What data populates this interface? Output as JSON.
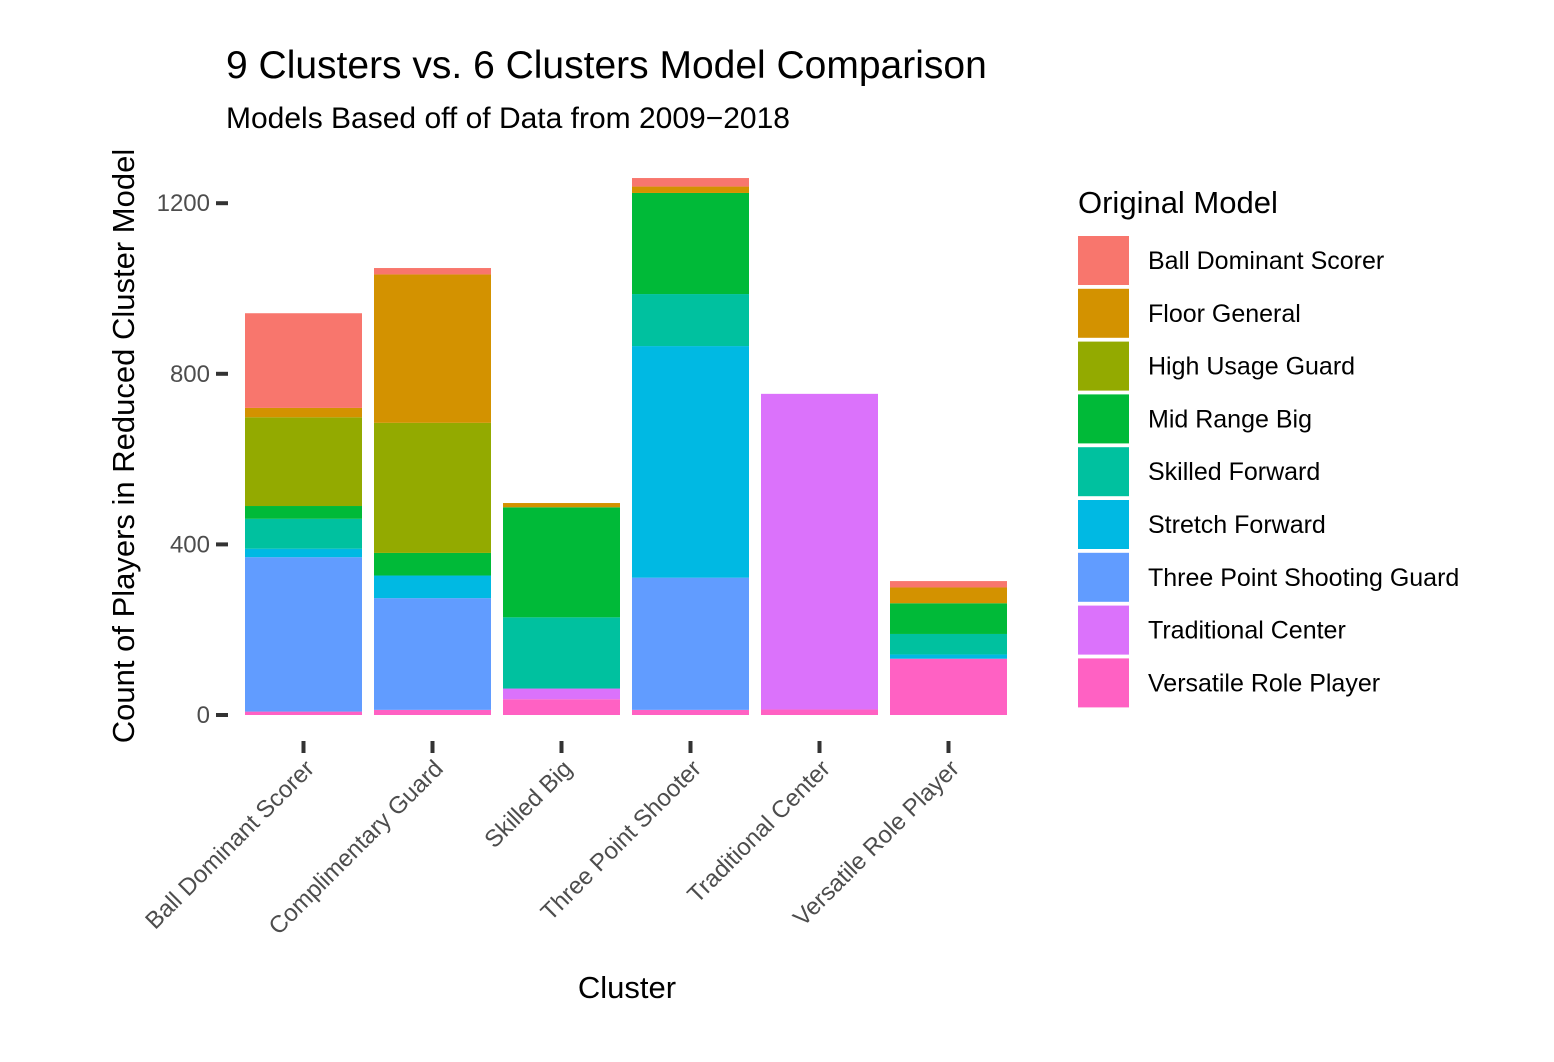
{
  "chart_data": {
    "type": "bar",
    "stacked": true,
    "title": "9 Clusters vs. 6 Clusters Model Comparison",
    "subtitle": "Models Based off of Data from 2009−2018",
    "xlabel": "Cluster",
    "ylabel": "Count of Players in Reduced Cluster Model",
    "ylim": [
      0,
      1260
    ],
    "yticks": [
      "0",
      "400",
      "800",
      "1200"
    ],
    "ytick_values": [
      0,
      400,
      800,
      1200
    ],
    "grid": false,
    "legend": {
      "title": "Original Model",
      "position": "right"
    },
    "categories": [
      "Ball Dominant Scorer",
      "Complimentary Guard",
      "Skilled Big",
      "Three Point Shooter",
      "Traditional Center",
      "Versatile Role Player"
    ],
    "series": [
      {
        "name": "Ball Dominant Scorer",
        "color": "#F8766D",
        "values": [
          222,
          15,
          0,
          20,
          0,
          15
        ]
      },
      {
        "name": "Floor General",
        "color": "#D39200",
        "values": [
          22,
          348,
          10,
          15,
          0,
          37
        ]
      },
      {
        "name": "High Usage Guard",
        "color": "#93AA00",
        "values": [
          208,
          305,
          0,
          0,
          0,
          0
        ]
      },
      {
        "name": "Mid Range Big",
        "color": "#00BA38",
        "values": [
          30,
          53,
          258,
          237,
          0,
          72
        ]
      },
      {
        "name": "Skilled Forward",
        "color": "#00C19F",
        "values": [
          70,
          0,
          167,
          122,
          0,
          48
        ]
      },
      {
        "name": "Stretch Forward",
        "color": "#00B9E3",
        "values": [
          20,
          53,
          0,
          543,
          0,
          10
        ]
      },
      {
        "name": "Three Point Shooting Guard",
        "color": "#619CFF",
        "values": [
          362,
          262,
          0,
          310,
          0,
          0
        ]
      },
      {
        "name": "Traditional Center",
        "color": "#DB72FB",
        "values": [
          0,
          0,
          25,
          0,
          740,
          0
        ]
      },
      {
        "name": "Versatile Role Player",
        "color": "#FF61C3",
        "values": [
          8,
          12,
          37,
          12,
          13,
          132
        ]
      }
    ]
  }
}
